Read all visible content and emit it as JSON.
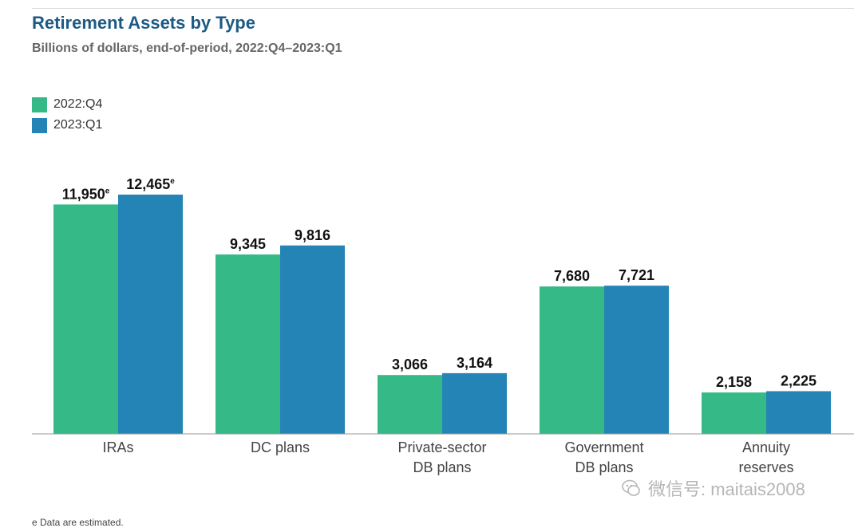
{
  "title": "Retirement Assets by Type",
  "subtitle": "Billions of dollars, end-of-period, 2022:Q4–2023:Q1",
  "colors": {
    "series_1": "#35b986",
    "series_2": "#2484b5",
    "axis": "#9a9a9a",
    "title": "#1c5a84"
  },
  "footnote": "e Data are estimated.",
  "watermark": "微信号: maitais2008",
  "chart_data": {
    "type": "bar",
    "title": "Retirement Assets by Type",
    "subtitle": "Billions of dollars, end-of-period, 2022:Q4–2023:Q1",
    "categories": [
      "IRAs",
      "DC plans",
      "Private-sector DB plans",
      "Government DB plans",
      "Annuity reserves"
    ],
    "category_lines": [
      [
        "IRAs"
      ],
      [
        "DC plans"
      ],
      [
        "Private-sector",
        "DB plans"
      ],
      [
        "Government",
        "DB plans"
      ],
      [
        "Annuity",
        "reserves"
      ]
    ],
    "series": [
      {
        "name": "2022:Q4",
        "values": [
          11950,
          9345,
          3066,
          7680,
          2158
        ],
        "labels": [
          "11,950",
          "9,345",
          "3,066",
          "7,680",
          "2,158"
        ],
        "estimated": [
          true,
          false,
          false,
          false,
          false
        ]
      },
      {
        "name": "2023:Q1",
        "values": [
          12465,
          9816,
          3164,
          7721,
          2225
        ],
        "labels": [
          "12,465",
          "9,816",
          "3,164",
          "7,721",
          "2,225"
        ],
        "estimated": [
          true,
          false,
          false,
          false,
          false
        ]
      }
    ],
    "ylim": [
      0,
      13000
    ],
    "grid": false,
    "legend": "top-left"
  }
}
